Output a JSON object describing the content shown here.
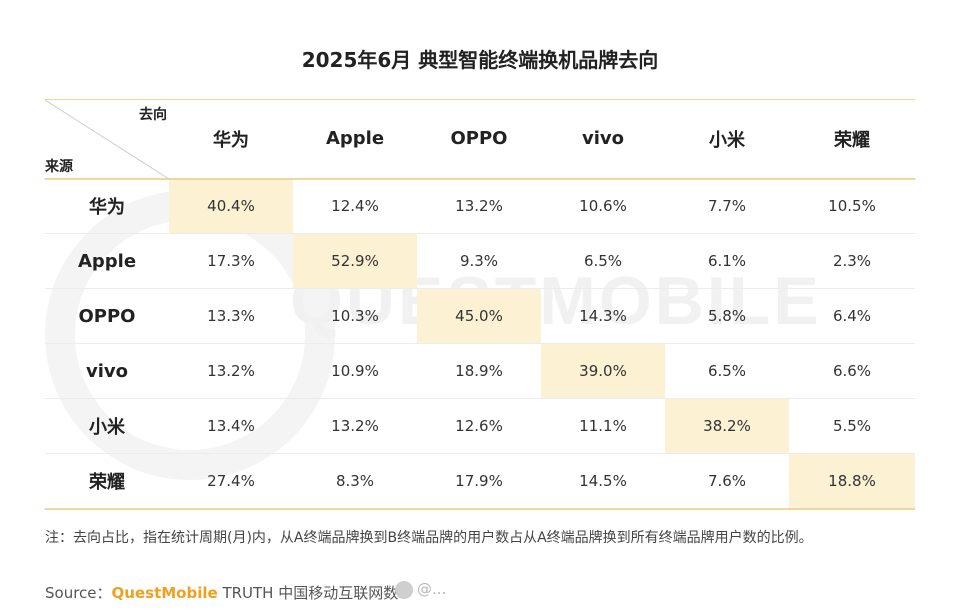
{
  "title": "2025年6月 典型智能终端换机品牌去向",
  "watermark": "QUESTMOBILE",
  "corner": {
    "to": "去向",
    "from": "来源"
  },
  "note": "注：去向占比，指在统计周期(月)内，从A终端品牌换到B终端品牌的用户数占从A终端品牌换到所有终端品牌用户数的比例。",
  "source": {
    "label": "Source：",
    "brand": "QuestMobile",
    "rest": " TRUTH 中国移动互联网数"
  },
  "weibo_mark": "@...",
  "colors": {
    "header_line": "#efd79c",
    "highlight": "#fdf1d3",
    "brand": "#f0a01e"
  },
  "chart_data": {
    "type": "table",
    "columns": [
      "华为",
      "Apple",
      "OPPO",
      "vivo",
      "小米",
      "荣耀"
    ],
    "rows": [
      "华为",
      "Apple",
      "OPPO",
      "vivo",
      "小米",
      "荣耀"
    ],
    "cells": [
      [
        "40.4%",
        "12.4%",
        "13.2%",
        "10.6%",
        "7.7%",
        "10.5%"
      ],
      [
        "17.3%",
        "52.9%",
        "9.3%",
        "6.5%",
        "6.1%",
        "2.3%"
      ],
      [
        "13.3%",
        "10.3%",
        "45.0%",
        "14.3%",
        "5.8%",
        "6.4%"
      ],
      [
        "13.2%",
        "10.9%",
        "18.9%",
        "39.0%",
        "6.5%",
        "6.6%"
      ],
      [
        "13.4%",
        "13.2%",
        "12.6%",
        "11.1%",
        "38.2%",
        "5.5%"
      ],
      [
        "27.4%",
        "8.3%",
        "17.9%",
        "14.5%",
        "7.6%",
        "18.8%"
      ]
    ]
  }
}
